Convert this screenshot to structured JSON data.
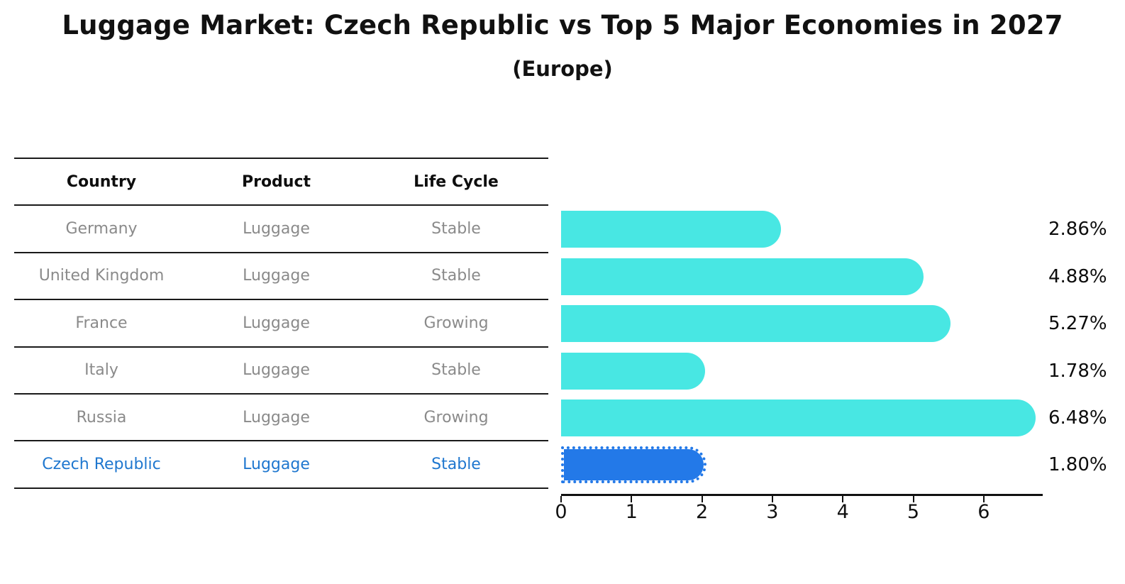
{
  "header": {
    "title": "Luggage Market: Czech Republic vs Top 5 Major Economies in 2027",
    "subtitle": "(Europe)"
  },
  "table": {
    "headers": [
      "Country",
      "Product",
      "Life Cycle"
    ],
    "rows": [
      {
        "country": "Germany",
        "product": "Luggage",
        "life_cycle": "Stable",
        "highlight": false
      },
      {
        "country": "United Kingdom",
        "product": "Luggage",
        "life_cycle": "Stable",
        "highlight": false
      },
      {
        "country": "France",
        "product": "Luggage",
        "life_cycle": "Growing",
        "highlight": false
      },
      {
        "country": "Italy",
        "product": "Luggage",
        "life_cycle": "Stable",
        "highlight": false
      },
      {
        "country": "Russia",
        "product": "Luggage",
        "life_cycle": "Growing",
        "highlight": false
      },
      {
        "country": "Czech Republic",
        "product": "Luggage",
        "life_cycle": "Stable",
        "highlight": true
      }
    ]
  },
  "chart_data": {
    "type": "bar",
    "orientation": "horizontal",
    "title": "Luggage Market: Czech Republic vs Top 5 Major Economies in 2027",
    "subtitle": "(Europe)",
    "categories": [
      "Germany",
      "United Kingdom",
      "France",
      "Italy",
      "Russia",
      "Czech Republic"
    ],
    "values": [
      2.86,
      4.88,
      5.27,
      1.78,
      6.48,
      1.8
    ],
    "value_labels": [
      "2.86%",
      "4.88%",
      "5.27%",
      "1.78%",
      "6.48%",
      "1.80%"
    ],
    "x_ticks": [
      "0",
      "1",
      "2",
      "3",
      "4",
      "5",
      "6"
    ],
    "xlim": [
      0,
      6.8
    ],
    "grid": false,
    "legend": "none",
    "bar_color": "#48e7e3",
    "highlight_color": "#2379e8",
    "highlight_index": 5,
    "highlight_text_color": "#1f77cf"
  }
}
